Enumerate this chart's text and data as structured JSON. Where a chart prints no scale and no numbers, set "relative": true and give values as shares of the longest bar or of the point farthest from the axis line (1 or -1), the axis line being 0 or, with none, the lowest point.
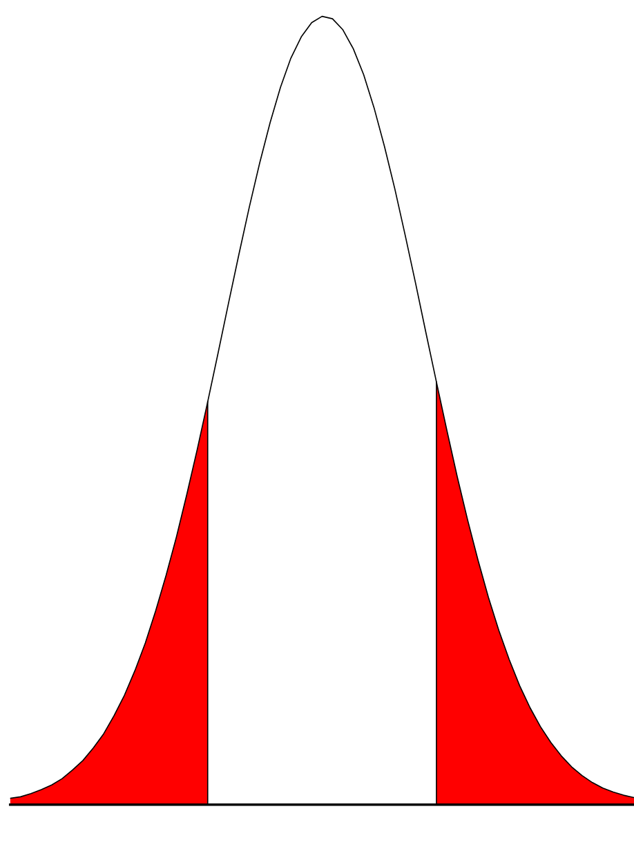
{
  "chart_data": {
    "type": "line",
    "relative": true,
    "categories": [
      null,
      null,
      null,
      null,
      null,
      null,
      null,
      null,
      null,
      null,
      null,
      null,
      null,
      null,
      null,
      null,
      null,
      null,
      null,
      null,
      null,
      null,
      null,
      null,
      null,
      null,
      null,
      null,
      null,
      null,
      null,
      null,
      null,
      null,
      null,
      null,
      null,
      null,
      null,
      null,
      null,
      null,
      null,
      null,
      null,
      null,
      null,
      null,
      null,
      null,
      null,
      null,
      null,
      null,
      null,
      null,
      null,
      null,
      null,
      null,
      null
    ],
    "series": [
      {
        "type": "area",
        "color": "#ff0000",
        "values": [
          0.008,
          0.01,
          0.014,
          0.019,
          0.025,
          0.033,
          0.044,
          0.056,
          0.072,
          0.09,
          0.113,
          0.139,
          0.17,
          0.205,
          0.246,
          0.291,
          0.34,
          0.394,
          0.451,
          0.511,
          null,
          null,
          null,
          null,
          null,
          null,
          null,
          null,
          null,
          null,
          null,
          null,
          null,
          null,
          null,
          null,
          null,
          null,
          null,
          null,
          null,
          0.536,
          0.475,
          0.416,
          0.361,
          0.31,
          0.263,
          0.221,
          0.184,
          0.151,
          0.123,
          0.099,
          0.079,
          0.062,
          0.048,
          0.037,
          0.028,
          0.021,
          0.016,
          0.012,
          0.009
        ]
      },
      {
        "color": "#000000",
        "values": [
          0.008,
          0.01,
          0.014,
          0.019,
          0.025,
          0.033,
          0.044,
          0.056,
          0.072,
          0.09,
          0.113,
          0.139,
          0.17,
          0.205,
          0.246,
          0.291,
          0.34,
          0.394,
          0.451,
          0.511,
          0.573,
          0.636,
          0.698,
          0.758,
          0.814,
          0.865,
          0.91,
          0.947,
          0.974,
          0.992,
          1.0,
          0.997,
          0.983,
          0.959,
          0.926,
          0.884,
          0.835,
          0.781,
          0.722,
          0.661,
          0.598,
          0.536,
          0.475,
          0.416,
          0.361,
          0.31,
          0.263,
          0.221,
          0.184,
          0.151,
          0.123,
          0.099,
          0.079,
          0.062,
          0.048,
          0.037,
          0.028,
          0.021,
          0.016,
          0.012,
          0.009
        ]
      }
    ]
  }
}
